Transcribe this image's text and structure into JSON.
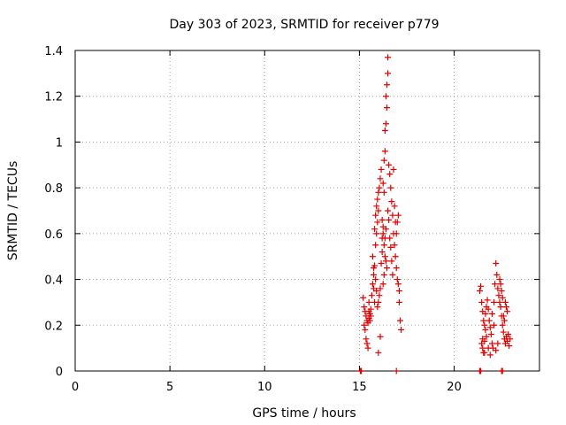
{
  "chart_data": {
    "type": "scatter",
    "title": "Day 303 of 2023, SRMTID for receiver p779",
    "xlabel": "GPS time / hours",
    "ylabel": "SRMTID / TECUs",
    "xlim": [
      0,
      24.5
    ],
    "ylim": [
      0,
      1.4
    ],
    "xticks": [
      0,
      5,
      10,
      15,
      20
    ],
    "xtick_labels": [
      "0",
      "5",
      "10",
      "15",
      "20"
    ],
    "yticks": [
      0,
      0.2,
      0.4,
      0.6,
      0.8,
      1.0,
      1.2,
      1.4
    ],
    "ytick_labels": [
      "0",
      "0.2",
      "0.4",
      "0.6",
      "0.8",
      "1",
      "1.2",
      "1.4"
    ],
    "grid": true,
    "marker": "+",
    "color": "#e00000",
    "series": [
      {
        "name": "SRMTID",
        "points": [
          [
            15.05,
            0.0
          ],
          [
            15.1,
            0.0
          ],
          [
            16.95,
            0.0
          ],
          [
            21.35,
            0.0
          ],
          [
            21.4,
            0.0
          ],
          [
            22.5,
            0.0
          ],
          [
            22.55,
            0.0
          ],
          [
            15.2,
            0.32
          ],
          [
            15.25,
            0.28
          ],
          [
            15.3,
            0.26
          ],
          [
            15.35,
            0.24
          ],
          [
            15.4,
            0.22
          ],
          [
            15.45,
            0.21
          ],
          [
            15.5,
            0.23
          ],
          [
            15.55,
            0.25
          ],
          [
            15.6,
            0.27
          ],
          [
            15.25,
            0.2
          ],
          [
            15.3,
            0.18
          ],
          [
            15.35,
            0.14
          ],
          [
            15.4,
            0.12
          ],
          [
            15.45,
            0.1
          ],
          [
            15.5,
            0.3
          ],
          [
            15.55,
            0.22
          ],
          [
            15.6,
            0.24
          ],
          [
            15.5,
            0.26
          ],
          [
            15.65,
            0.33
          ],
          [
            15.7,
            0.38
          ],
          [
            15.75,
            0.42
          ],
          [
            15.8,
            0.46
          ],
          [
            15.85,
            0.55
          ],
          [
            15.9,
            0.6
          ],
          [
            15.95,
            0.65
          ],
          [
            16.0,
            0.7
          ],
          [
            15.7,
            0.5
          ],
          [
            15.75,
            0.45
          ],
          [
            15.8,
            0.62
          ],
          [
            15.85,
            0.68
          ],
          [
            15.9,
            0.72
          ],
          [
            15.95,
            0.75
          ],
          [
            16.0,
            0.78
          ],
          [
            16.05,
            0.8
          ],
          [
            16.1,
            0.84
          ],
          [
            16.15,
            0.88
          ],
          [
            16.2,
            0.66
          ],
          [
            16.25,
            0.6
          ],
          [
            16.3,
            0.55
          ],
          [
            16.35,
            0.5
          ],
          [
            16.4,
            0.48
          ],
          [
            16.45,
            0.45
          ],
          [
            16.2,
            0.58
          ],
          [
            16.25,
            0.63
          ],
          [
            16.3,
            0.92
          ],
          [
            16.35,
            1.05
          ],
          [
            16.4,
            1.2
          ],
          [
            16.45,
            1.25
          ],
          [
            16.5,
            1.37
          ],
          [
            16.5,
            1.3
          ],
          [
            16.45,
            1.15
          ],
          [
            16.4,
            1.08
          ],
          [
            16.35,
            0.96
          ],
          [
            16.55,
            0.9
          ],
          [
            16.6,
            0.86
          ],
          [
            16.65,
            0.8
          ],
          [
            16.7,
            0.74
          ],
          [
            16.75,
            0.68
          ],
          [
            16.8,
            0.6
          ],
          [
            16.85,
            0.55
          ],
          [
            16.9,
            0.5
          ],
          [
            16.95,
            0.45
          ],
          [
            17.0,
            0.4
          ],
          [
            17.05,
            0.38
          ],
          [
            17.1,
            0.35
          ],
          [
            17.0,
            0.65
          ],
          [
            16.9,
            0.65
          ],
          [
            16.95,
            0.6
          ],
          [
            17.05,
            0.68
          ],
          [
            17.1,
            0.3
          ],
          [
            17.15,
            0.22
          ],
          [
            17.2,
            0.18
          ],
          [
            16.3,
            0.42
          ],
          [
            16.25,
            0.38
          ],
          [
            16.1,
            0.36
          ],
          [
            16.05,
            0.33
          ],
          [
            16.0,
            0.3
          ],
          [
            15.95,
            0.28
          ],
          [
            15.9,
            0.35
          ],
          [
            15.85,
            0.4
          ],
          [
            15.8,
            0.3
          ],
          [
            15.75,
            0.36
          ],
          [
            16.1,
            0.15
          ],
          [
            16.0,
            0.08
          ],
          [
            16.2,
            0.52
          ],
          [
            16.15,
            0.47
          ],
          [
            16.5,
            0.7
          ],
          [
            16.55,
            0.66
          ],
          [
            16.6,
            0.58
          ],
          [
            16.65,
            0.54
          ],
          [
            16.7,
            0.48
          ],
          [
            16.75,
            0.42
          ],
          [
            16.8,
            0.88
          ],
          [
            16.85,
            0.72
          ],
          [
            16.4,
            0.62
          ],
          [
            16.35,
            0.58
          ],
          [
            16.3,
            0.78
          ],
          [
            16.25,
            0.82
          ],
          [
            21.35,
            0.35
          ],
          [
            21.4,
            0.37
          ],
          [
            21.45,
            0.3
          ],
          [
            21.5,
            0.26
          ],
          [
            21.55,
            0.22
          ],
          [
            21.6,
            0.2
          ],
          [
            21.65,
            0.18
          ],
          [
            21.7,
            0.15
          ],
          [
            21.45,
            0.12
          ],
          [
            21.5,
            0.1
          ],
          [
            21.55,
            0.08
          ],
          [
            21.6,
            0.13
          ],
          [
            21.65,
            0.25
          ],
          [
            21.7,
            0.28
          ],
          [
            21.75,
            0.31
          ],
          [
            21.8,
            0.27
          ],
          [
            21.85,
            0.22
          ],
          [
            21.9,
            0.19
          ],
          [
            21.95,
            0.16
          ],
          [
            22.0,
            0.12
          ],
          [
            22.05,
            0.1
          ],
          [
            22.1,
            0.2
          ],
          [
            22.15,
            0.38
          ],
          [
            22.2,
            0.47
          ],
          [
            22.25,
            0.42
          ],
          [
            22.3,
            0.36
          ],
          [
            22.35,
            0.33
          ],
          [
            22.4,
            0.3
          ],
          [
            22.45,
            0.28
          ],
          [
            22.5,
            0.24
          ],
          [
            22.55,
            0.2
          ],
          [
            22.6,
            0.17
          ],
          [
            22.65,
            0.14
          ],
          [
            22.7,
            0.12
          ],
          [
            22.75,
            0.15
          ],
          [
            22.8,
            0.13
          ],
          [
            22.85,
            0.16
          ],
          [
            22.9,
            0.11
          ],
          [
            22.95,
            0.14
          ],
          [
            22.7,
            0.3
          ],
          [
            22.75,
            0.28
          ],
          [
            22.8,
            0.26
          ],
          [
            22.65,
            0.22
          ],
          [
            22.6,
            0.24
          ],
          [
            22.55,
            0.32
          ],
          [
            22.5,
            0.35
          ],
          [
            22.45,
            0.38
          ],
          [
            22.4,
            0.4
          ],
          [
            21.5,
            0.14
          ],
          [
            21.6,
            0.08
          ],
          [
            21.8,
            0.1
          ],
          [
            21.9,
            0.07
          ],
          [
            22.0,
            0.25
          ],
          [
            22.1,
            0.3
          ],
          [
            22.2,
            0.09
          ],
          [
            22.3,
            0.12
          ]
        ]
      }
    ]
  }
}
